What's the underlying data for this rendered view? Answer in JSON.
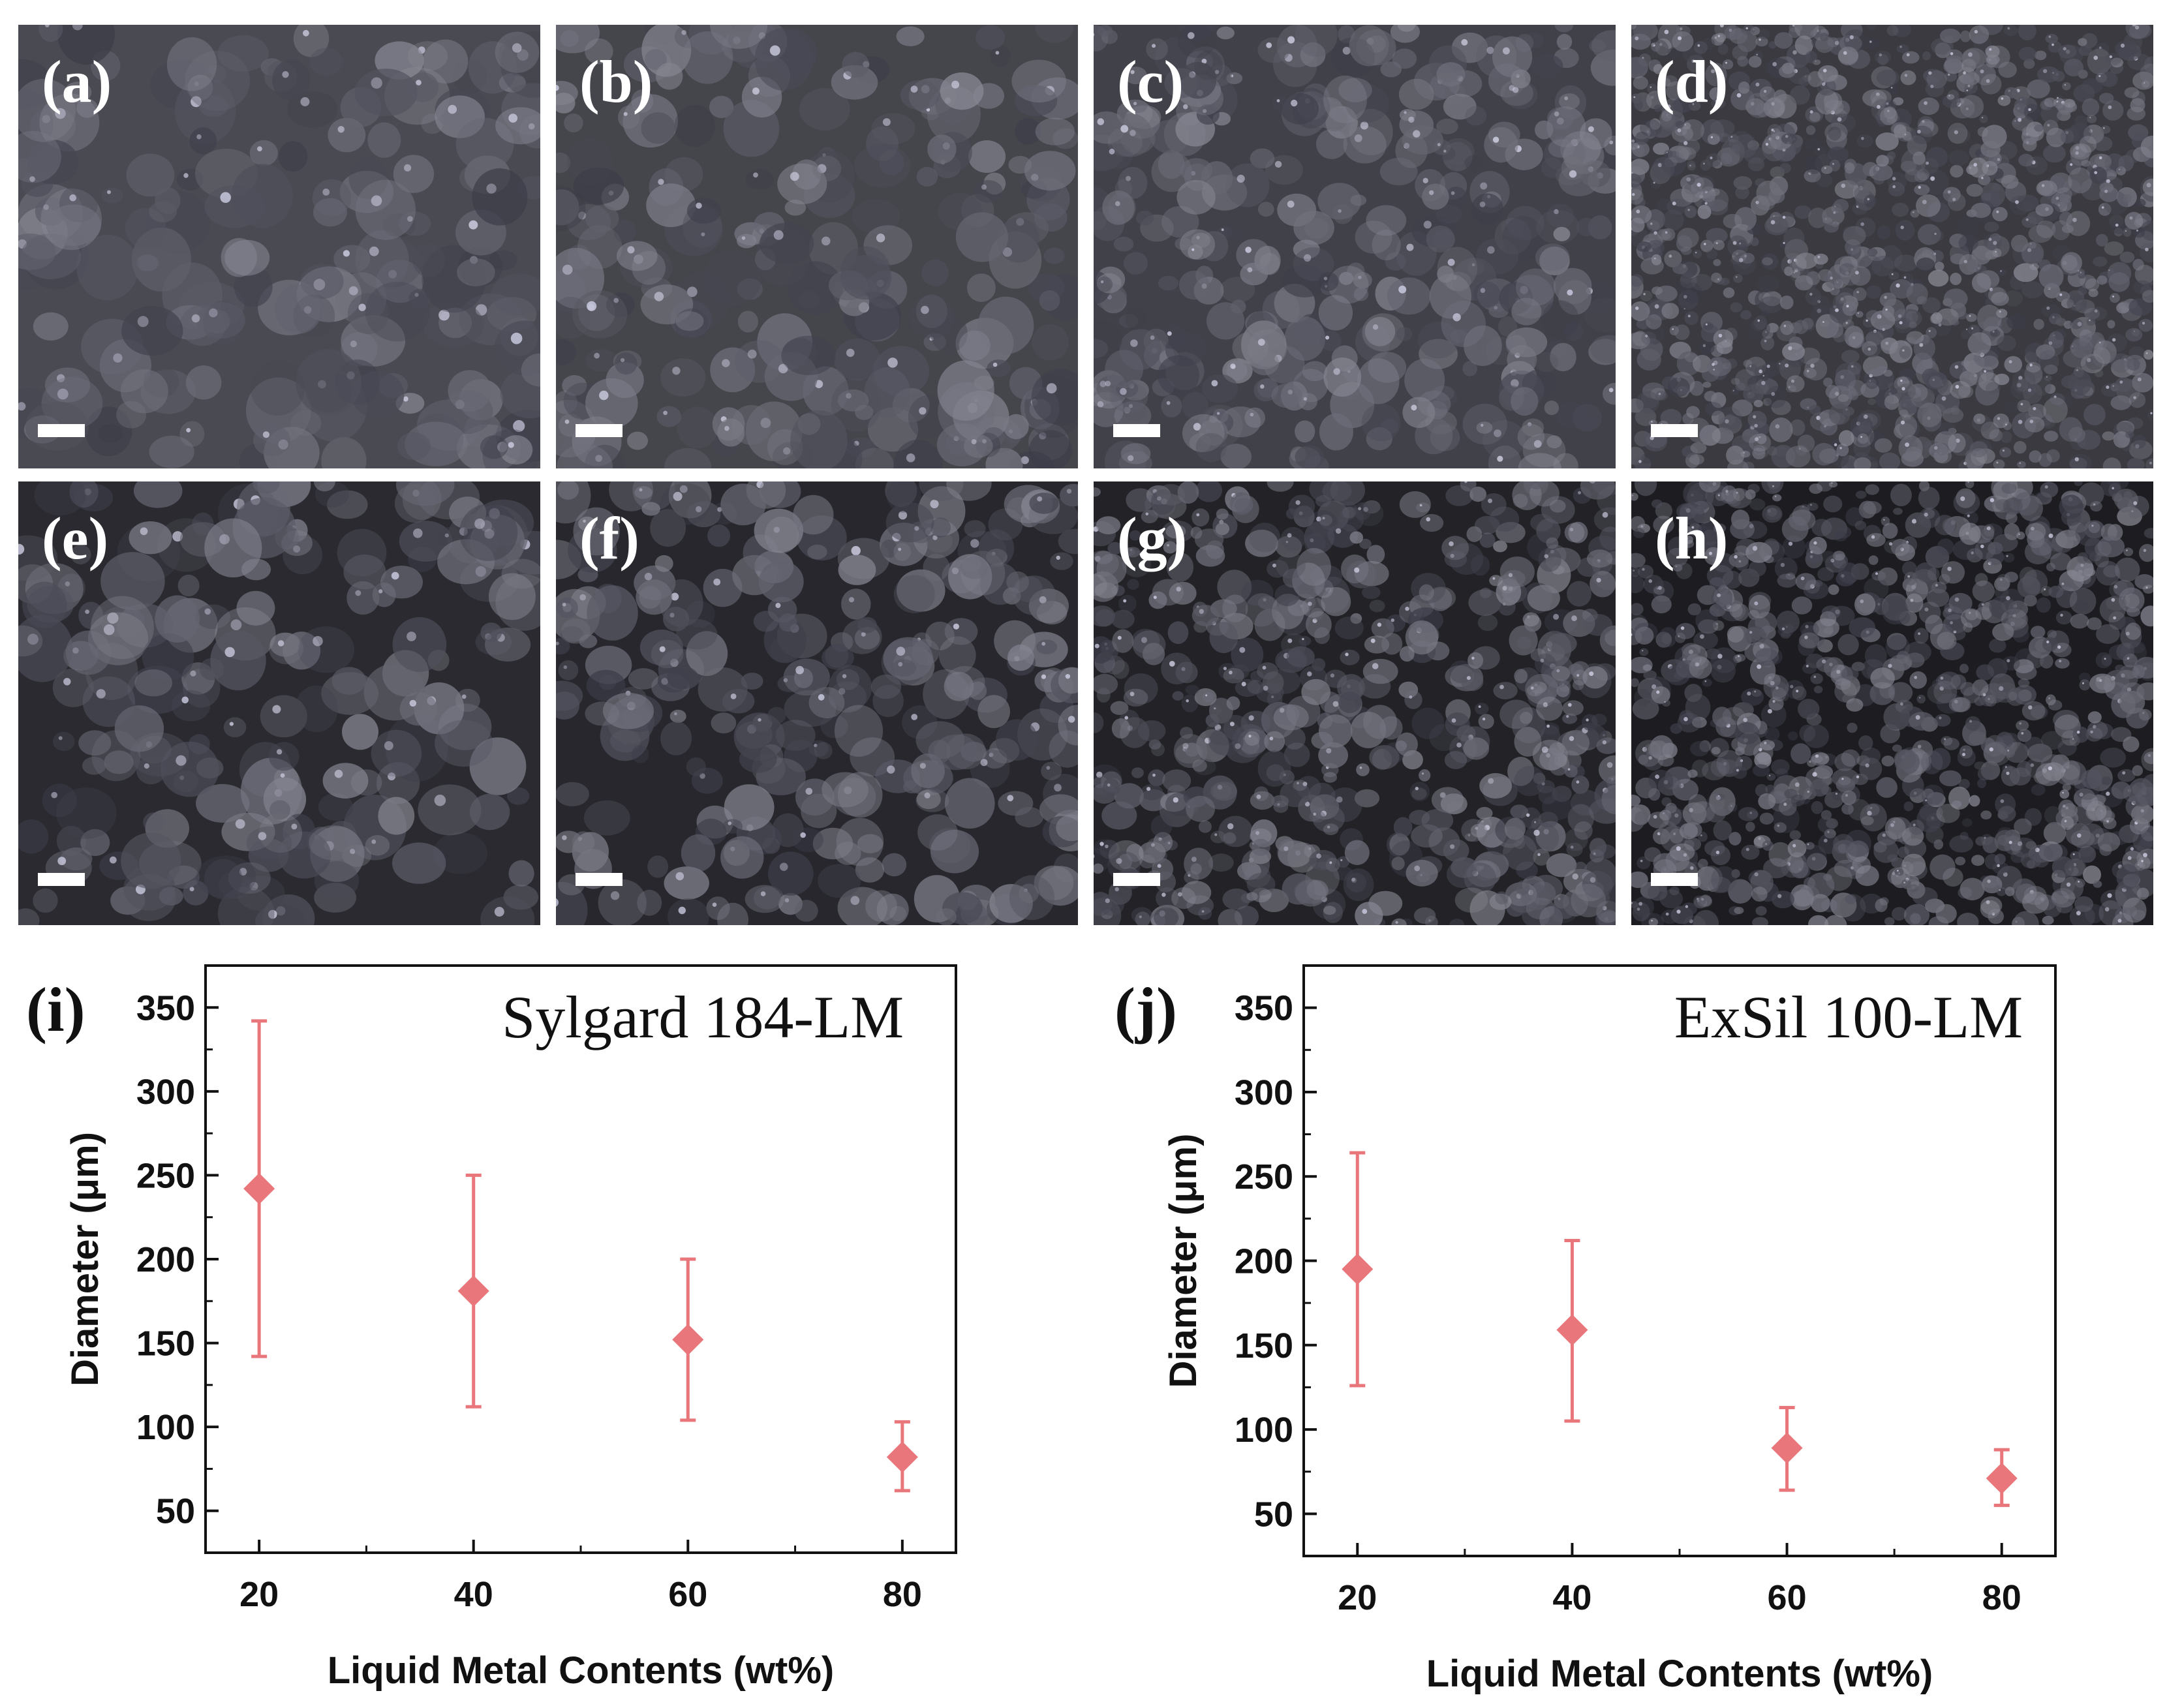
{
  "micrographs": [
    {
      "label": "(a)",
      "tone": "#4a4a52",
      "grain": 64,
      "scale_bar_row": "bottom"
    },
    {
      "label": "(b)",
      "tone": "#45454c",
      "grain": 56,
      "scale_bar_row": "bottom"
    },
    {
      "label": "(c)",
      "tone": "#414149",
      "grain": 44,
      "scale_bar_row": "bottom"
    },
    {
      "label": "(d)",
      "tone": "#3a3a40",
      "grain": 24,
      "scale_bar_row": "bottom"
    },
    {
      "label": "(e)",
      "tone": "#2a2a30",
      "grain": 62,
      "scale_bar_row": "bottom"
    },
    {
      "label": "(f)",
      "tone": "#27272d",
      "grain": 50,
      "scale_bar_row": "bottom"
    },
    {
      "label": "(g)",
      "tone": "#222227",
      "grain": 34,
      "scale_bar_row": "bottom"
    },
    {
      "label": "(h)",
      "tone": "#1c1c21",
      "grain": 26,
      "scale_bar_row": "bottom"
    }
  ],
  "chart_data": [
    {
      "type": "scatter",
      "panel_label": "(i)",
      "title": "Sylgard 184-LM",
      "xlabel": "Liquid Metal Contents (wt%)",
      "ylabel": "Diameter (μm)",
      "x": [
        20,
        40,
        60,
        80
      ],
      "y": [
        242,
        181,
        152,
        82
      ],
      "error_low": [
        142,
        112,
        104,
        62
      ],
      "error_high": [
        342,
        250,
        200,
        103
      ],
      "xlim": [
        15,
        85
      ],
      "ylim": [
        25,
        375
      ],
      "xticks": [
        20,
        40,
        60,
        80
      ],
      "yticks": [
        50,
        100,
        150,
        200,
        250,
        300,
        350
      ],
      "marker": "diamond",
      "color": "#e8767a",
      "grid": false
    },
    {
      "type": "scatter",
      "panel_label": "(j)",
      "title": "ExSil 100-LM",
      "xlabel": "Liquid Metal Contents (wt%)",
      "ylabel": "Diameter (μm)",
      "x": [
        20,
        40,
        60,
        80
      ],
      "y": [
        195,
        159,
        89,
        71
      ],
      "error_low": [
        126,
        105,
        64,
        55
      ],
      "error_high": [
        264,
        212,
        113,
        88
      ],
      "xlim": [
        15,
        85
      ],
      "ylim": [
        25,
        375
      ],
      "xticks": [
        20,
        40,
        60,
        80
      ],
      "yticks": [
        50,
        100,
        150,
        200,
        250,
        300,
        350
      ],
      "marker": "diamond",
      "color": "#e8767a",
      "grid": false
    }
  ]
}
